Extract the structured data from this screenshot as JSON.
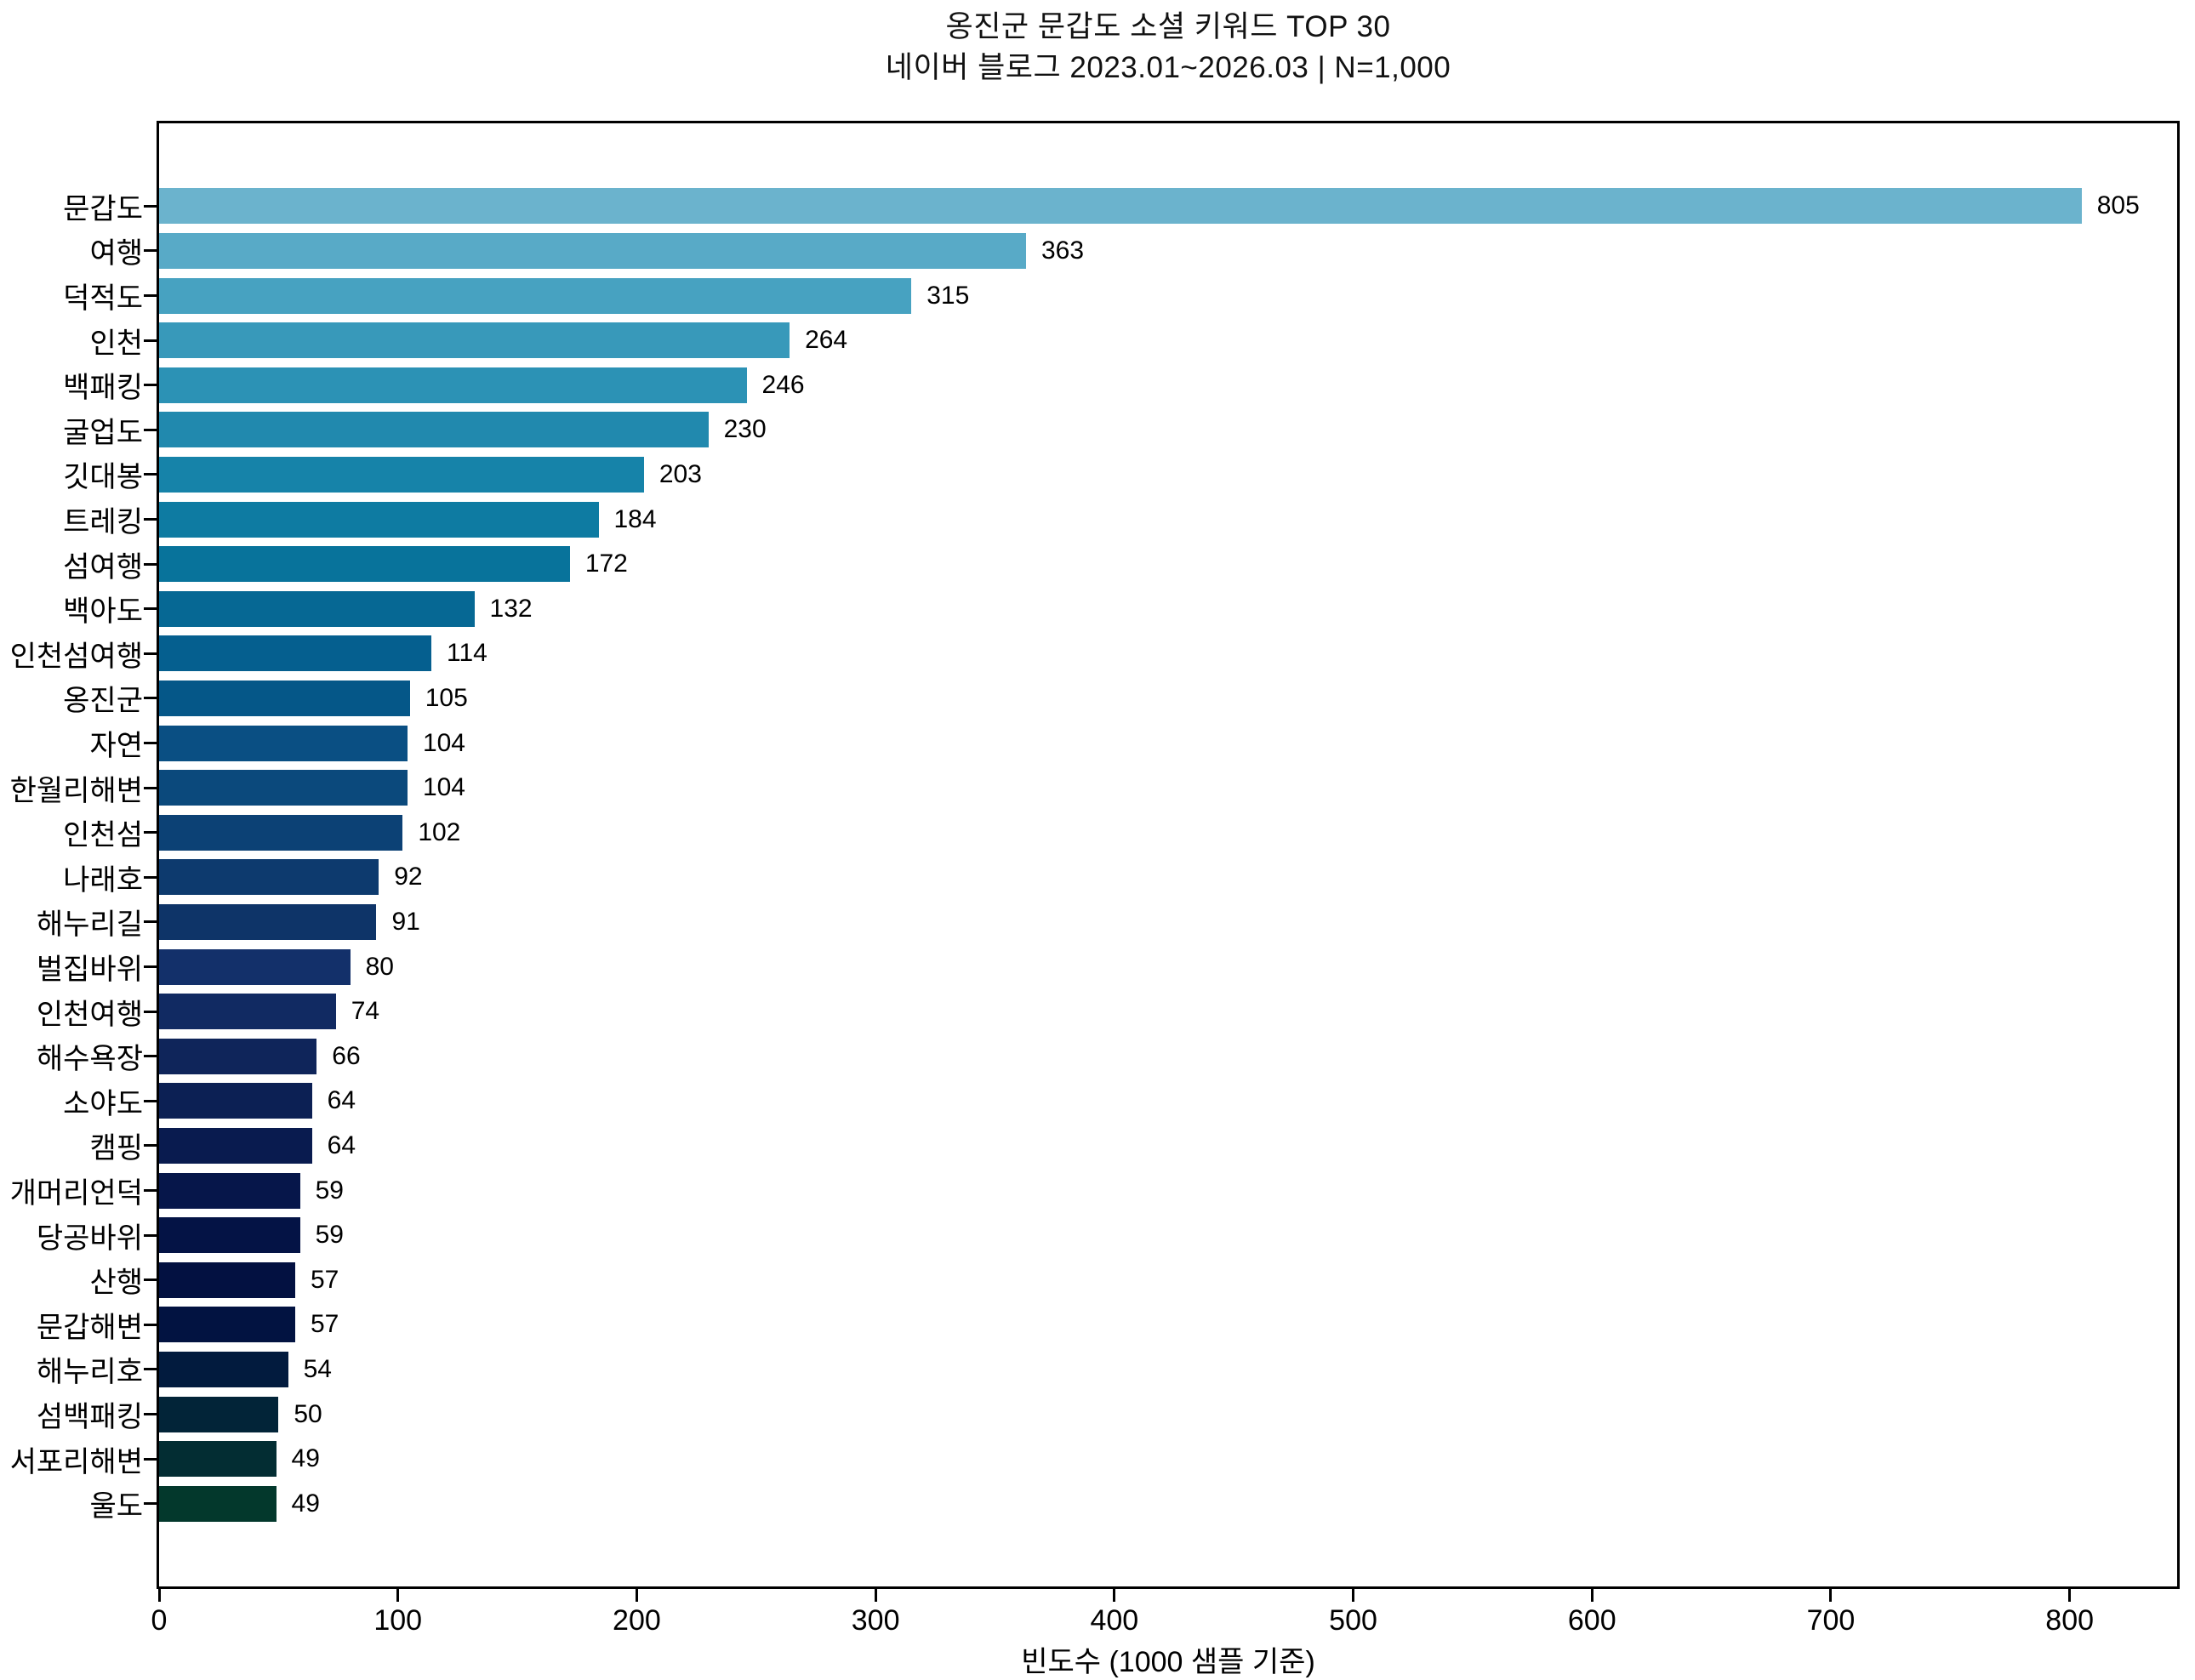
{
  "title": {
    "line1": "옹진군 문갑도 소셜 키워드 TOP 30",
    "line2": "네이버 블로그 2023.01~2026.03 | N=1,000"
  },
  "chart_data": {
    "type": "bar",
    "orientation": "horizontal",
    "title": "옹진군 문갑도 소셜 키워드 TOP 30\n네이버 블로그 2023.01~2026.03 | N=1,000",
    "xlabel": "빈도수 (1000 샘플 기준)",
    "ylabel": "",
    "categories": [
      "문갑도",
      "여행",
      "덕적도",
      "인천",
      "백패킹",
      "굴업도",
      "깃대봉",
      "트레킹",
      "섬여행",
      "백아도",
      "인천섬여행",
      "옹진군",
      "자연",
      "한월리해변",
      "인천섬",
      "나래호",
      "해누리길",
      "벌집바위",
      "인천여행",
      "해수욕장",
      "소야도",
      "캠핑",
      "개머리언덕",
      "당공바위",
      "산행",
      "문갑해변",
      "해누리호",
      "섬백패킹",
      "서포리해변",
      "울도"
    ],
    "values": [
      805,
      363,
      315,
      264,
      246,
      230,
      203,
      184,
      172,
      132,
      114,
      105,
      104,
      104,
      102,
      92,
      91,
      80,
      74,
      66,
      64,
      64,
      59,
      59,
      57,
      57,
      54,
      50,
      49,
      49
    ],
    "bar_colors": [
      "#6bb3cd",
      "#58aac7",
      "#47a2c1",
      "#3899ba",
      "#2c92b5",
      "#2189ae",
      "#1683a9",
      "#0e7ba2",
      "#08739b",
      "#066894",
      "#055f8f",
      "#055788",
      "#0a4f83",
      "#0b497c",
      "#0c4175",
      "#0d3a6e",
      "#0e3468",
      "#13306a",
      "#112a62",
      "#0f255a",
      "#0c2054",
      "#091b4f",
      "#06164a",
      "#041345",
      "#031141",
      "#021341",
      "#021b3e",
      "#022438",
      "#032d33",
      "#03382c"
    ],
    "xticks": [
      0,
      100,
      200,
      300,
      400,
      500,
      600,
      700,
      800
    ],
    "xlim": [
      0,
      845
    ],
    "grid": false,
    "legend": "none",
    "value_labels_shown": true
  },
  "axis_color": "#000000",
  "background_color": "#ffffff"
}
